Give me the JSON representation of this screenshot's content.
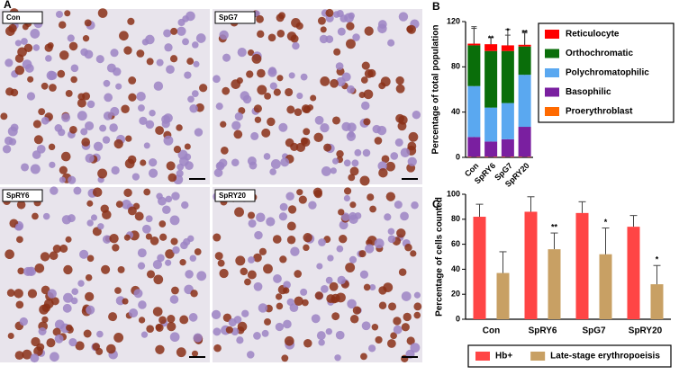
{
  "figure": {
    "panel": "A",
    "images": [
      "Con",
      "SpG7",
      "SpRY6",
      "SpRY20"
    ]
  },
  "chart_data": [
    {
      "type": "bar",
      "stacked": true,
      "panel": "B",
      "ylabel": "Percentage of total population",
      "categories": [
        "Con",
        "SpRY6",
        "SpG7",
        "SpRY20"
      ],
      "ylim": [
        0,
        120
      ],
      "yticks": [
        0,
        40,
        80,
        120
      ],
      "legend": "right",
      "series": [
        {
          "name": "Proerythroblast",
          "color": "#ff6a00",
          "values": [
            0.5,
            0.5,
            0.5,
            0.5
          ],
          "errors": [
            0,
            0,
            0,
            0
          ],
          "annotations": [
            null,
            null,
            null,
            null
          ]
        },
        {
          "name": "Basophilic",
          "color": "#7a1fa0",
          "values": [
            17.5,
            13.5,
            15.5,
            26.5
          ],
          "errors": [
            9,
            10,
            9,
            9
          ],
          "annotations": [
            null,
            null,
            null,
            "*"
          ]
        },
        {
          "name": "Polychromatophilic",
          "color": "#5aa8f0",
          "values": [
            45,
            30,
            32,
            46
          ],
          "errors": [
            14,
            16,
            15,
            8
          ],
          "annotations": [
            null,
            "**",
            null,
            null
          ]
        },
        {
          "name": "Orthochromatic",
          "color": "#0a6e0a",
          "values": [
            36,
            50,
            46,
            25
          ],
          "errors": [
            15,
            12,
            14,
            12
          ],
          "annotations": [
            null,
            null,
            null,
            null
          ]
        },
        {
          "name": "Reticulocyte",
          "color": "#ff0000",
          "values": [
            1.5,
            6,
            5,
            1.5
          ],
          "errors": [
            15,
            6,
            14,
            12
          ],
          "annotations": [
            null,
            "**",
            "*",
            "**"
          ]
        }
      ]
    },
    {
      "type": "bar",
      "stacked": false,
      "panel": "C",
      "ylabel": "Percentage of cells counted",
      "categories": [
        "Con",
        "SpRY6",
        "SpG7",
        "SpRY20"
      ],
      "ylim": [
        0,
        100
      ],
      "yticks": [
        0,
        20,
        40,
        60,
        80,
        100
      ],
      "legend": "bottom",
      "series": [
        {
          "name": "Hb+",
          "color": "#ff4545",
          "values": [
            82,
            86,
            85,
            74
          ],
          "errors": [
            10,
            12,
            9,
            9
          ],
          "annotations": [
            null,
            null,
            null,
            null
          ]
        },
        {
          "name": "Late-stage erythropoeisis",
          "color": "#c8a064",
          "values": [
            37,
            56,
            52,
            28
          ],
          "errors": [
            17,
            13,
            21,
            15
          ],
          "annotations": [
            null,
            "**",
            "*",
            "*"
          ]
        }
      ]
    }
  ]
}
